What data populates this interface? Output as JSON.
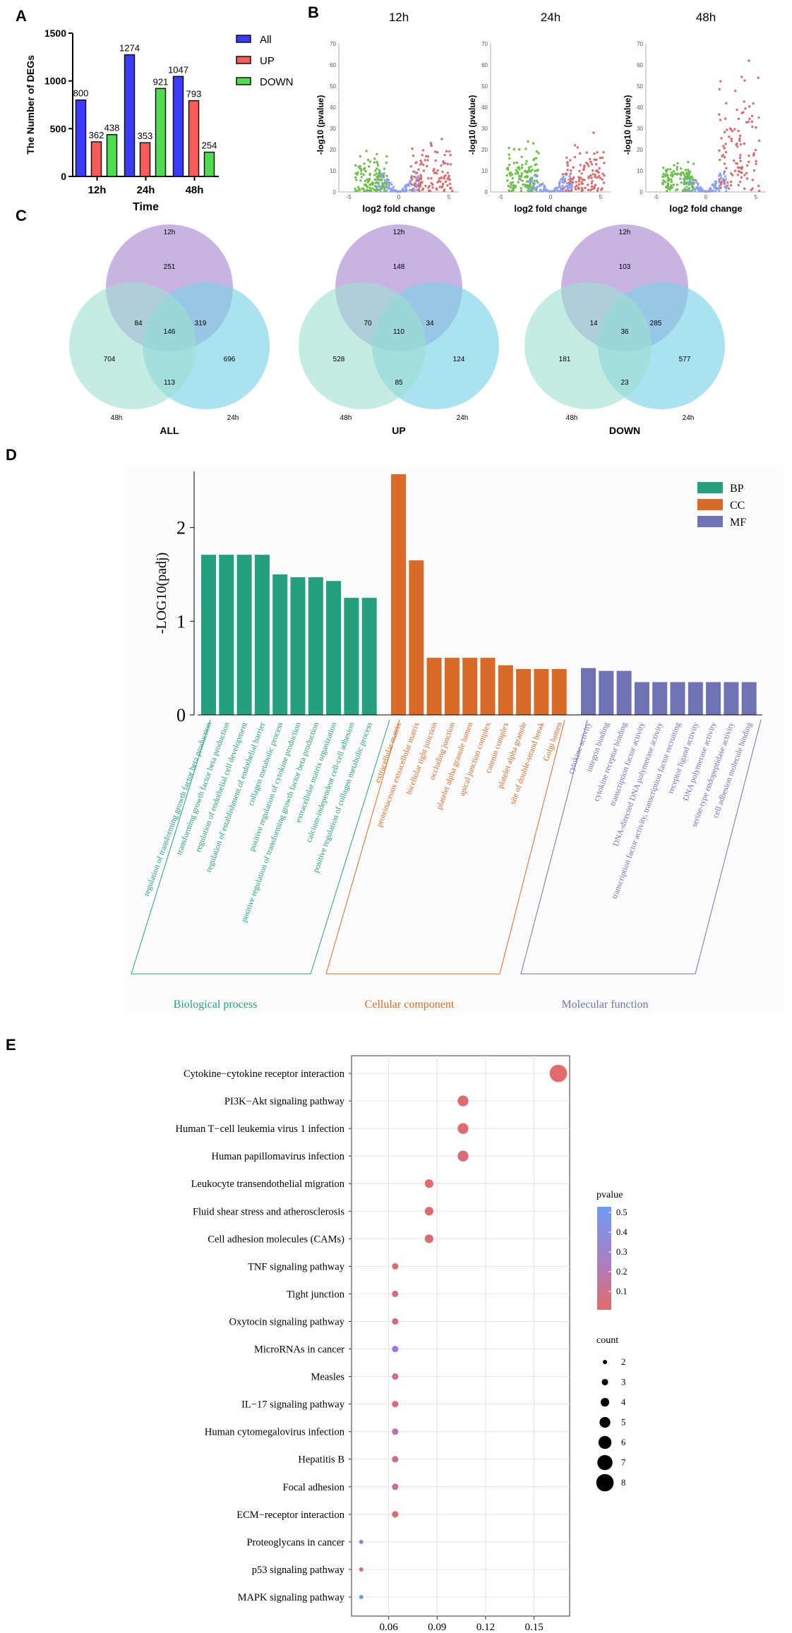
{
  "colors": {
    "all": "#3b3bff",
    "up": "#ff5a5a",
    "down": "#4fdc4f",
    "bp": "#24a07e",
    "cc": "#da6a27",
    "mf": "#6f72b5",
    "venn12": "#b59ad9",
    "venn24": "#7ed3e8",
    "venn48": "#9fe0cf",
    "volGreen": "#6cbf4a",
    "volRed": "#d96d6d",
    "volBlue": "#8ca1ee",
    "kegLow": "#e26b6b",
    "kegHigh": "#6f9bf5"
  },
  "panels": {
    "a": "A",
    "b": "B",
    "c": "C",
    "d": "D",
    "e": "E"
  },
  "panelA": {
    "chart_data": {
      "type": "bar",
      "title": "",
      "categories": [
        "12h",
        "24h",
        "48h"
      ],
      "series": [
        {
          "name": "All",
          "values": [
            800,
            1274,
            1047
          ]
        },
        {
          "name": "UP",
          "values": [
            362,
            353,
            793
          ]
        },
        {
          "name": "DOWN",
          "values": [
            438,
            921,
            254
          ]
        }
      ],
      "xlabel": "Time",
      "ylabel": "The Number of DEGs",
      "ylim": [
        0,
        1500
      ],
      "yticks": [
        0,
        500,
        1000,
        1500
      ],
      "legend": "top-right"
    }
  },
  "panelB": {
    "chart_data": [
      {
        "type": "scatter",
        "title": "12h",
        "xlabel": "log2 fold change",
        "ylabel": "-log10 (pvalue)",
        "xlim": [
          -6,
          6
        ],
        "ylim": [
          0,
          70
        ],
        "xticks": [
          -5,
          0,
          5
        ],
        "yticks": [
          0,
          10,
          20,
          30,
          40,
          50,
          60,
          70
        ],
        "left_max": 20,
        "right_max": 25
      },
      {
        "type": "scatter",
        "title": "24h",
        "xlabel": "log2 fold change",
        "ylabel": "-log10 (pvalue)",
        "xlim": [
          -6,
          6
        ],
        "ylim": [
          0,
          70
        ],
        "xticks": [
          -5,
          0,
          5
        ],
        "yticks": [
          0,
          10,
          20,
          30,
          40,
          50,
          60,
          70
        ],
        "left_max": 25,
        "right_max": 28
      },
      {
        "type": "scatter",
        "title": "48h",
        "xlabel": "log2 fold change",
        "ylabel": "-log10 (pvalue)",
        "xlim": [
          -6,
          6
        ],
        "ylim": [
          0,
          70
        ],
        "xticks": [
          -5,
          0,
          5
        ],
        "yticks": [
          0,
          10,
          20,
          30,
          40,
          50,
          60,
          70
        ],
        "left_max": 16,
        "right_max": 62
      }
    ]
  },
  "panelC": {
    "chart_data": [
      {
        "type": "venn",
        "title": "ALL",
        "sets": [
          "12h",
          "24h",
          "48h"
        ],
        "only12": "251",
        "only24": "696",
        "only48": "704",
        "s12_24": "319",
        "s12_48": "84",
        "s24_48": "113",
        "all3": "146"
      },
      {
        "type": "venn",
        "title": "UP",
        "sets": [
          "12h",
          "24h",
          "48h"
        ],
        "only12": "148",
        "only24": "124",
        "only48": "528",
        "s12_24": "34",
        "s12_48": "70",
        "s24_48": "85",
        "all3": "110"
      },
      {
        "type": "venn",
        "title": "DOWN",
        "sets": [
          "12h",
          "24h",
          "48h"
        ],
        "only12": "103",
        "only24": "577",
        "only48": "181",
        "s12_24": "285",
        "s12_48": "14",
        "s24_48": "23",
        "all3": "36"
      }
    ]
  },
  "panelD": {
    "chart_data": {
      "type": "bar",
      "ylabel": "-LOG10(padj)",
      "ylim": [
        0,
        2.6
      ],
      "yticks": [
        0,
        1,
        2
      ],
      "legend": [
        "BP",
        "CC",
        "MF"
      ],
      "groups": [
        "Biological process",
        "Cellular component",
        "Molecular function"
      ],
      "bars": [
        {
          "label": "regulation of transforming growth factor beta production",
          "value": 1.71,
          "cat": "BP"
        },
        {
          "label": "transforming growth factor beta production",
          "value": 1.71,
          "cat": "BP"
        },
        {
          "label": "regulation of endothelial cell development",
          "value": 1.71,
          "cat": "BP"
        },
        {
          "label": "regulation of establishment of endothelial barrier",
          "value": 1.71,
          "cat": "BP"
        },
        {
          "label": "collagen metabolic process",
          "value": 1.5,
          "cat": "BP"
        },
        {
          "label": "positive regulation of cytokine production",
          "value": 1.47,
          "cat": "BP"
        },
        {
          "label": "positive regulation of transforming growth factor beta production",
          "value": 1.47,
          "cat": "BP"
        },
        {
          "label": "extracellular matrix organization",
          "value": 1.43,
          "cat": "BP"
        },
        {
          "label": "calcium-independent cell-cell adhesion",
          "value": 1.25,
          "cat": "BP"
        },
        {
          "label": "positive regulation of collagen metabolic process",
          "value": 1.25,
          "cat": "BP"
        },
        {
          "label": "extracellular matrix",
          "value": 2.57,
          "cat": "CC"
        },
        {
          "label": "proteinaceous extracellular matrix",
          "value": 1.65,
          "cat": "CC"
        },
        {
          "label": "bicellular tight junction",
          "value": 0.61,
          "cat": "CC"
        },
        {
          "label": "occluding junction",
          "value": 0.61,
          "cat": "CC"
        },
        {
          "label": "platelet alpha granule lumen",
          "value": 0.61,
          "cat": "CC"
        },
        {
          "label": "apical junction complex",
          "value": 0.61,
          "cat": "CC"
        },
        {
          "label": "catenin complex",
          "value": 0.53,
          "cat": "CC"
        },
        {
          "label": "platelet alpha granule",
          "value": 0.49,
          "cat": "CC"
        },
        {
          "label": "site of double-strand break",
          "value": 0.49,
          "cat": "CC"
        },
        {
          "label": "Golgi lumen",
          "value": 0.49,
          "cat": "CC"
        },
        {
          "label": "cytokine activity",
          "value": 0.5,
          "cat": "MF"
        },
        {
          "label": "integrin binding",
          "value": 0.47,
          "cat": "MF"
        },
        {
          "label": "cytokine receptor binding",
          "value": 0.47,
          "cat": "MF"
        },
        {
          "label": "transcription factor activity",
          "value": 0.35,
          "cat": "MF"
        },
        {
          "label": "DNA-directed DNA polymerase activity",
          "value": 0.35,
          "cat": "MF"
        },
        {
          "label": "transcription factor activity, transcription factor recruiting",
          "value": 0.35,
          "cat": "MF"
        },
        {
          "label": "receptor ligand activity",
          "value": 0.35,
          "cat": "MF"
        },
        {
          "label": "DNA polymerase activity",
          "value": 0.35,
          "cat": "MF"
        },
        {
          "label": "serine-type endopeptidase activity",
          "value": 0.35,
          "cat": "MF"
        },
        {
          "label": "cell adhesion molecule binding",
          "value": 0.35,
          "cat": "MF"
        }
      ]
    }
  },
  "panelE": {
    "chart_data": {
      "type": "scatter",
      "xlim": [
        0.037,
        0.172
      ],
      "xticks": [
        0.06,
        0.09,
        0.12,
        0.15
      ],
      "legend_color_title": "pvalue",
      "color_ticks": [
        0.5,
        0.4,
        0.3,
        0.2,
        0.1
      ],
      "legend_size_title": "count",
      "size_ticks": [
        2,
        3,
        4,
        5,
        6,
        7,
        8
      ],
      "points": [
        {
          "term": "Cytokine−cytokine receptor interaction",
          "x": 0.165,
          "count": 8,
          "p": 0.02
        },
        {
          "term": "PI3K−Akt signaling pathway",
          "x": 0.106,
          "count": 5,
          "p": 0.03
        },
        {
          "term": "Human T−cell leukemia virus 1 infection",
          "x": 0.106,
          "count": 5,
          "p": 0.03
        },
        {
          "term": "Human papillomavirus infection",
          "x": 0.106,
          "count": 5,
          "p": 0.05
        },
        {
          "term": "Leukocyte transendothelial migration",
          "x": 0.085,
          "count": 4,
          "p": 0.02
        },
        {
          "term": "Fluid shear stress and atherosclerosis",
          "x": 0.085,
          "count": 4,
          "p": 0.03
        },
        {
          "term": "Cell adhesion molecules (CAMs)",
          "x": 0.085,
          "count": 4,
          "p": 0.04
        },
        {
          "term": "TNF signaling pathway",
          "x": 0.064,
          "count": 3,
          "p": 0.05
        },
        {
          "term": "Tight junction",
          "x": 0.064,
          "count": 3,
          "p": 0.08
        },
        {
          "term": "Oxytocin signaling pathway",
          "x": 0.064,
          "count": 3,
          "p": 0.1
        },
        {
          "term": "MicroRNAs in cancer",
          "x": 0.064,
          "count": 3,
          "p": 0.3
        },
        {
          "term": "Measles",
          "x": 0.064,
          "count": 3,
          "p": 0.1
        },
        {
          "term": "IL−17 signaling pathway",
          "x": 0.064,
          "count": 3,
          "p": 0.07
        },
        {
          "term": "Human cytomegalovirus infection",
          "x": 0.064,
          "count": 3,
          "p": 0.16
        },
        {
          "term": "Hepatitis B",
          "x": 0.064,
          "count": 3,
          "p": 0.12
        },
        {
          "term": "Focal adhesion",
          "x": 0.064,
          "count": 3,
          "p": 0.14
        },
        {
          "term": "ECM−receptor interaction",
          "x": 0.064,
          "count": 3,
          "p": 0.04
        },
        {
          "term": "Proteoglycans in cancer",
          "x": 0.043,
          "count": 2,
          "p": 0.32
        },
        {
          "term": "p53 signaling pathway",
          "x": 0.043,
          "count": 2,
          "p": 0.05
        },
        {
          "term": "MAPK signaling pathway",
          "x": 0.043,
          "count": 2,
          "p": 0.52
        }
      ]
    }
  }
}
